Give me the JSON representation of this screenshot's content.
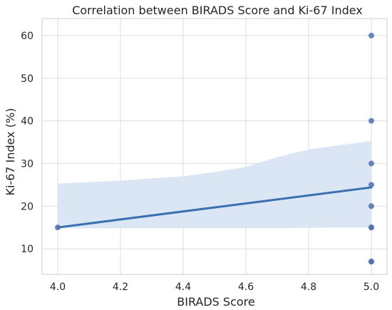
{
  "chart_data": {
    "type": "scatter",
    "title": "Correlation between BIRADS Score and Ki-67 Index",
    "xlabel": "BIRADS Score",
    "ylabel": "Ki-67 Index (%)",
    "xlim": [
      3.95,
      5.05
    ],
    "ylim": [
      4,
      64
    ],
    "xticks": [
      4.0,
      4.2,
      4.4,
      4.6,
      4.8,
      5.0
    ],
    "xtick_labels": [
      "4.0",
      "4.2",
      "4.4",
      "4.6",
      "4.8",
      "5.0"
    ],
    "yticks": [
      10,
      20,
      30,
      40,
      50,
      60
    ],
    "ytick_labels": [
      "10",
      "20",
      "30",
      "40",
      "50",
      "60"
    ],
    "grid": true,
    "points": [
      {
        "x": 4.0,
        "y": 15
      },
      {
        "x": 5.0,
        "y": 60
      },
      {
        "x": 5.0,
        "y": 40
      },
      {
        "x": 5.0,
        "y": 30
      },
      {
        "x": 5.0,
        "y": 25
      },
      {
        "x": 5.0,
        "y": 20
      },
      {
        "x": 5.0,
        "y": 15
      },
      {
        "x": 5.0,
        "y": 15
      },
      {
        "x": 5.0,
        "y": 7
      },
      {
        "x": 5.0,
        "y": 7
      }
    ],
    "regression_line": {
      "x": [
        4.0,
        5.0
      ],
      "y": [
        15.0,
        24.4
      ]
    },
    "confidence_band": {
      "x": [
        4.0,
        4.2,
        4.4,
        4.5,
        4.6,
        4.7,
        4.8,
        4.9,
        5.0
      ],
      "upper": [
        25.3,
        26.0,
        27.0,
        28.0,
        29.2,
        31.5,
        33.3,
        34.3,
        35.3
      ],
      "lower": [
        14.8,
        14.8,
        14.8,
        14.8,
        14.8,
        14.8,
        14.9,
        15.0,
        15.0
      ]
    },
    "colors": {
      "point": "#4c72b0",
      "line": "#3a6fb0",
      "band": "#dbe6f4",
      "grid": "#dddddd",
      "axis": "#cccccc"
    }
  }
}
